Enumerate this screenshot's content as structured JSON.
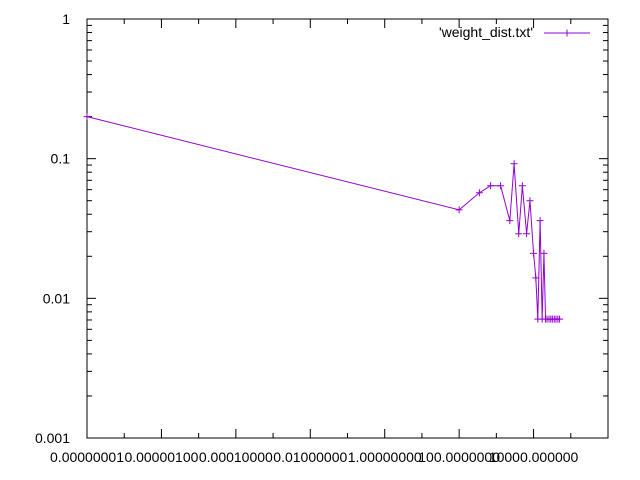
{
  "chart_data": {
    "type": "line",
    "title": "",
    "xlabel": "",
    "ylabel": "",
    "x_scale": "log",
    "y_scale": "log",
    "xlim": [
      1e-09,
      100000
    ],
    "ylim": [
      0.001,
      1
    ],
    "grid": false,
    "legend_position": "top-right",
    "x_tick_labels": [
      "0.00000001",
      "0.00000100",
      "0.00010000",
      "0.01000000",
      "1.00000000",
      "100.0000000",
      "10000.000000"
    ],
    "y_tick_labels": [
      "0.001",
      "0.01",
      "0.1",
      "1"
    ],
    "series": [
      {
        "name": "'weight_dist.txt'",
        "color": "#9400d3",
        "marker": "plus",
        "x": [
          1e-09,
          10,
          35,
          70,
          130,
          230,
          300,
          400,
          500,
          650,
          800,
          1000,
          1150,
          1300,
          1500,
          1700,
          1900,
          2100,
          2300,
          2600,
          2900,
          3200,
          3600,
          4000,
          4500,
          5000
        ],
        "y": [
          0.2,
          0.043,
          0.057,
          0.064,
          0.064,
          0.036,
          0.092,
          0.029,
          0.064,
          0.029,
          0.05,
          0.021,
          0.014,
          0.0071,
          0.036,
          0.0071,
          0.021,
          0.0071,
          0.0071,
          0.0071,
          0.0071,
          0.0071,
          0.0071,
          0.0071,
          0.0071,
          0.0071
        ]
      }
    ]
  }
}
